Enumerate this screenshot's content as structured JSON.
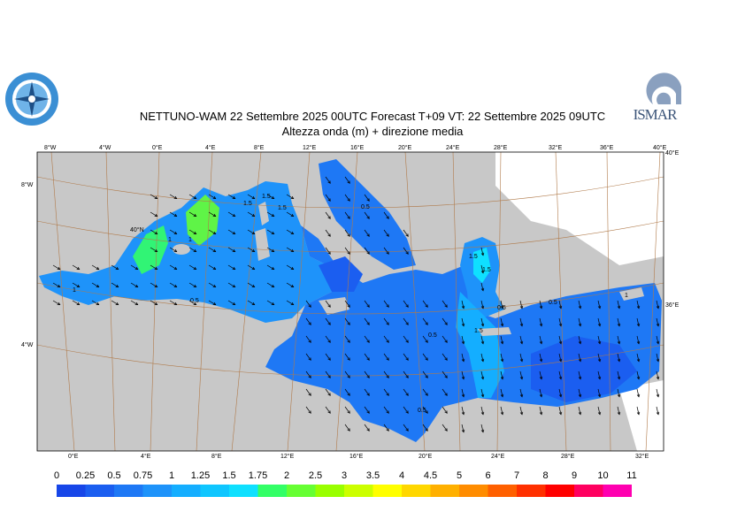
{
  "header": {
    "title": "NETTUNO-WAM  22 Settembre 2025 00UTC Forecast T+09 VT: 22 Settembre 2025 09UTC",
    "subtitle": "Altezza onda (m) + direzione media"
  },
  "logos": {
    "left": "servizio-meteorologico-logo",
    "right_text": "ISMAR"
  },
  "axes": {
    "top_lon": [
      "8°W",
      "4°W",
      "0°E",
      "4°E",
      "8°E",
      "12°E",
      "16°E",
      "20°E",
      "24°E",
      "28°E",
      "32°E",
      "36°E",
      "40°E"
    ],
    "bottom_lon": [
      "0°E",
      "4°E",
      "8°E",
      "12°E",
      "16°E",
      "20°E",
      "24°E",
      "28°E",
      "32°E"
    ],
    "left_lat": [
      "8°W",
      "40°N",
      "4°W"
    ],
    "right_lat": [
      "40°E",
      "36°E"
    ]
  },
  "contour_labels": [
    "1",
    "1",
    "1.5",
    "1.5",
    "1.5",
    "1.5",
    "0.5",
    "0.5",
    "0.5",
    "0.5",
    "0.5",
    "1",
    "1.5",
    "1.5",
    "1",
    "0.5"
  ],
  "legend": {
    "labels": [
      "0",
      "0.25",
      "0.5",
      "0.75",
      "1",
      "1.25",
      "1.5",
      "1.75",
      "2",
      "2.5",
      "3",
      "3.5",
      "4",
      "4.5",
      "5",
      "6",
      "7",
      "8",
      "9",
      "10",
      "11"
    ],
    "colors": [
      "#1746e8",
      "#1b5ef0",
      "#1e78f5",
      "#1e93fa",
      "#14aeff",
      "#0fc6ff",
      "#0fe0ff",
      "#33ff66",
      "#66ff33",
      "#99ff00",
      "#ccff00",
      "#ffff00",
      "#ffd700",
      "#ffb000",
      "#ff8c00",
      "#ff6000",
      "#ff3000",
      "#ff0000",
      "#ff0060",
      "#ff00b0"
    ]
  },
  "colors": {
    "land": "#c8c8c8",
    "sea_base": "#1e78f5",
    "graticule": "#b07a4a"
  }
}
